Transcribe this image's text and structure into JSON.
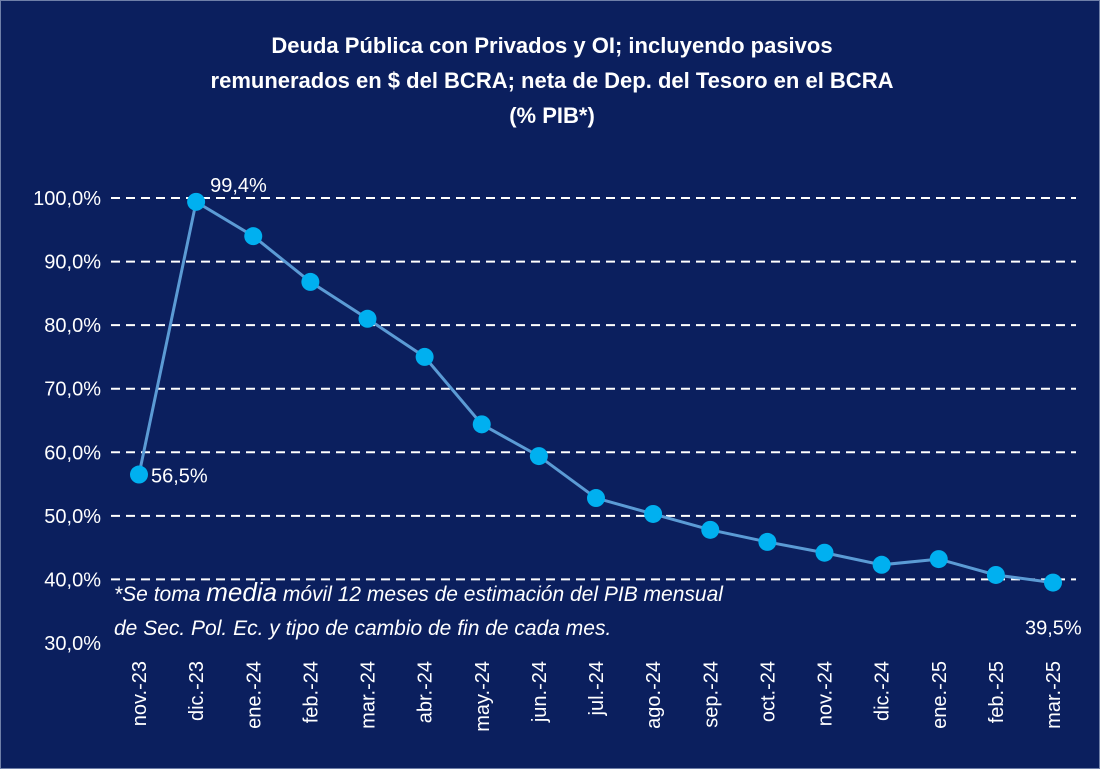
{
  "chart_data": {
    "type": "line",
    "title": [
      "Deuda Pública con Privados y OI; incluyendo pasivos",
      "remunerados en $ del BCRA; neta de Dep. del Tesoro en el BCRA",
      "(% PIB*)"
    ],
    "categories": [
      "nov.-23",
      "dic.-23",
      "ene.-24",
      "feb.-24",
      "mar.-24",
      "abr.-24",
      "may.-24",
      "jun.-24",
      "jul.-24",
      "ago.-24",
      "sep.-24",
      "oct.-24",
      "nov.-24",
      "dic.-24",
      "ene.-25",
      "feb.-25",
      "mar.-25"
    ],
    "values": [
      56.5,
      99.4,
      94.0,
      86.8,
      81.0,
      75.0,
      64.4,
      59.4,
      52.8,
      50.3,
      47.8,
      45.9,
      44.2,
      42.3,
      43.2,
      40.7,
      39.5
    ],
    "data_labels": {
      "0": "56,5%",
      "1": "99,4%",
      "16": "39,5%"
    },
    "ylim": [
      30,
      100
    ],
    "yticks": [
      "30,0%",
      "40,0%",
      "50,0%",
      "60,0%",
      "70,0%",
      "80,0%",
      "90,0%",
      "100,0%"
    ],
    "grid": "horizontal dashed",
    "colors": {
      "background": "#0b1f5e",
      "line": "#5b9bd5",
      "marker": "#00b0f0",
      "text": "#ffffff"
    },
    "footnote": {
      "line1_a": "*Se toma ",
      "line1_b": "media",
      "line1_c": " móvil 12 meses de estimación del PIB mensual",
      "line2": "de Sec. Pol. Ec. y tipo de cambio de fin de cada mes."
    }
  }
}
